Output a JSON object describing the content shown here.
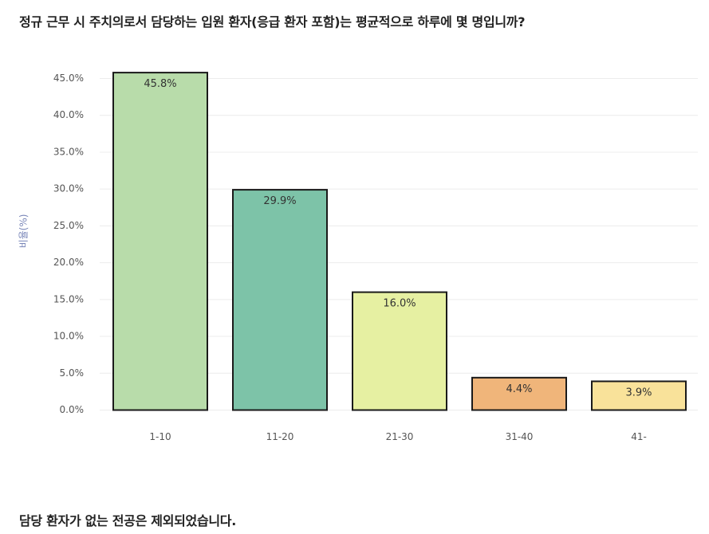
{
  "title": "정규 근무 시 주치의로서 담당하는 입원 환자(응급 환자 포함)는 평균적으로 하루에 몇 명입니까?",
  "footnote": "담당 환자가 없는 전공은 제외되었습니다.",
  "chart_data": {
    "type": "bar",
    "categories": [
      "1-10",
      "11-20",
      "21-30",
      "31-40",
      "41-"
    ],
    "values": [
      45.8,
      29.9,
      16.0,
      4.4,
      3.9
    ],
    "data_labels": [
      "45.8%",
      "29.9%",
      "16.0%",
      "4.4%",
      "3.9%"
    ],
    "colors": [
      "#b8dcaa",
      "#7dc3a8",
      "#e6f0a2",
      "#f0b57a",
      "#f9e29a"
    ],
    "ylabel": "비율(%)",
    "xlabel": "",
    "ylim": [
      0,
      45
    ],
    "yticks": [
      "0.0%",
      "5.0%",
      "10.0%",
      "15.0%",
      "20.0%",
      "25.0%",
      "30.0%",
      "35.0%",
      "40.0%",
      "45.0%"
    ],
    "grid": true,
    "legend": "none"
  }
}
